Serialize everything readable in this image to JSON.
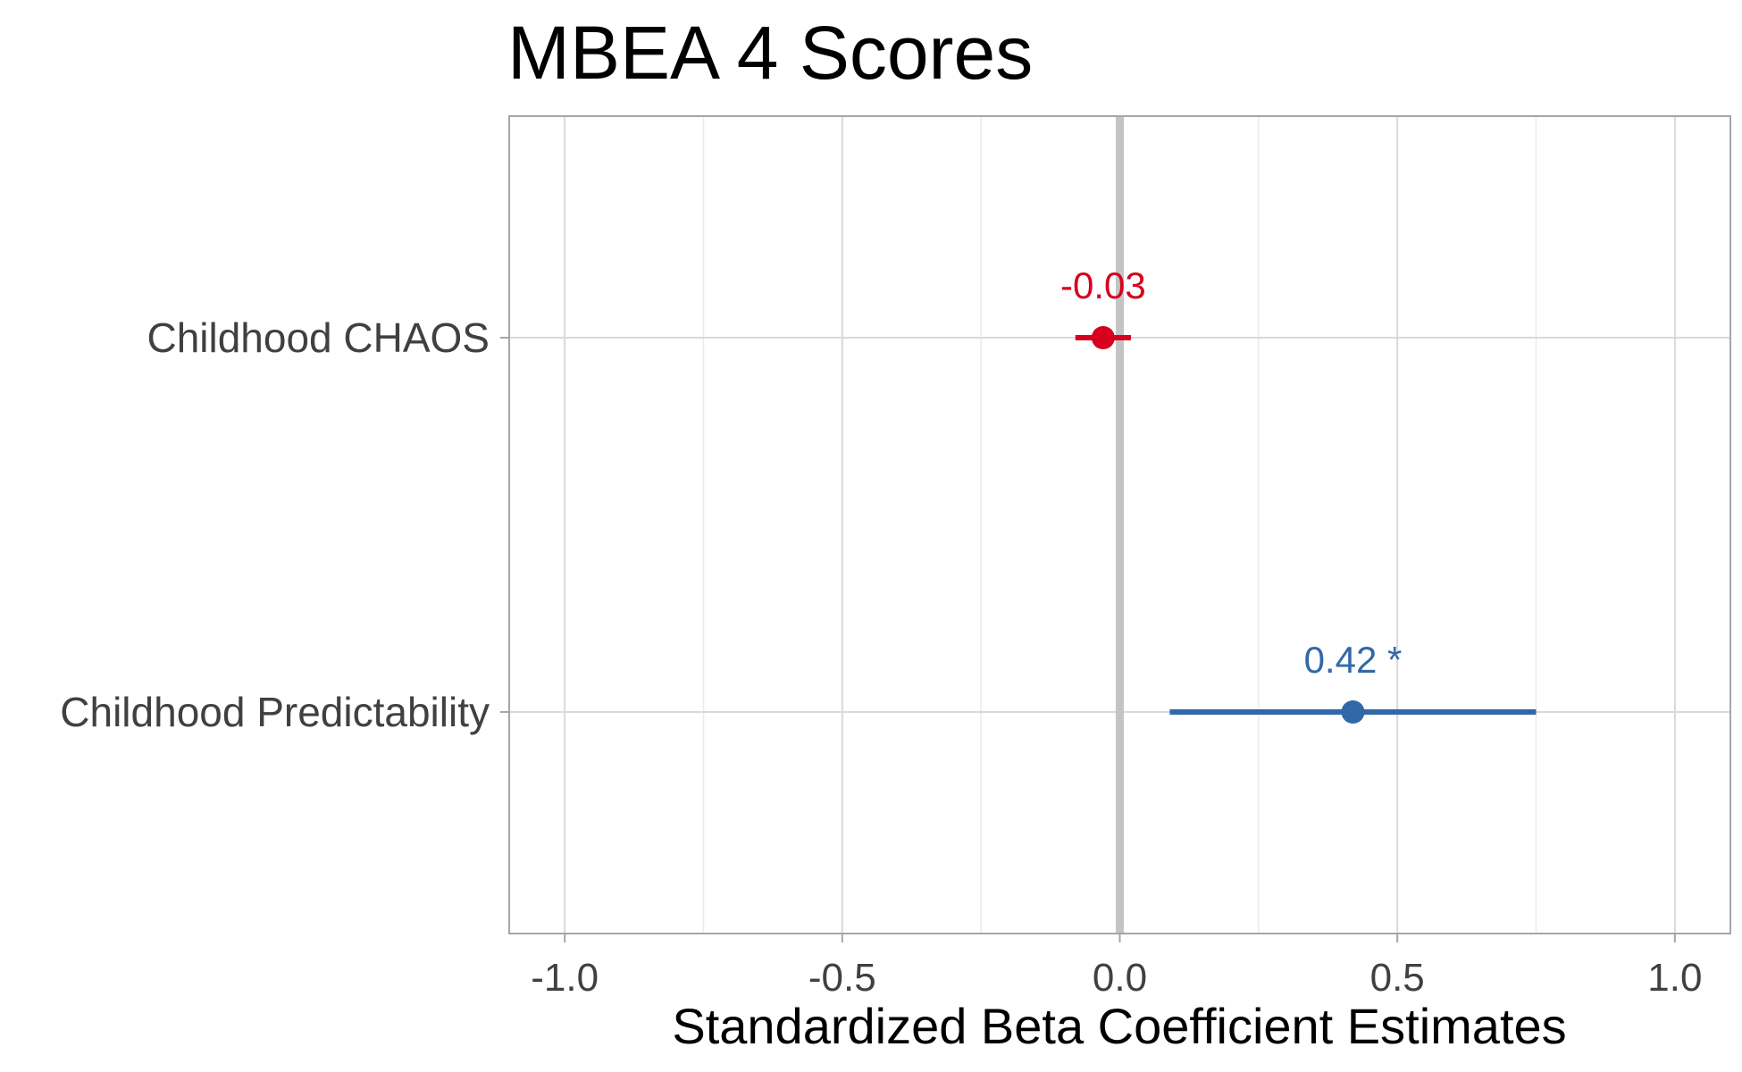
{
  "chart_data": {
    "type": "scatter",
    "title": "MBEA 4 Scores",
    "xlabel": "Standardized Beta Coefficient Estimates",
    "ylabel": "",
    "xlim": [
      -1.1,
      1.1
    ],
    "x_ticks": [
      -1.0,
      -0.5,
      0.0,
      0.5,
      1.0
    ],
    "x_tick_labels": [
      "-1.0",
      "-0.5",
      "0.0",
      "0.5",
      "1.0"
    ],
    "reference_line": 0.0,
    "grid": true,
    "legend": "none",
    "categories": [
      "Childhood CHAOS",
      "Childhood Predictability"
    ],
    "points": [
      {
        "category": "Childhood CHAOS",
        "estimate": -0.03,
        "ci_low": -0.08,
        "ci_high": 0.02,
        "label": "-0.03",
        "color": "#d7001e"
      },
      {
        "category": "Childhood Predictability",
        "estimate": 0.42,
        "ci_low": 0.09,
        "ci_high": 0.75,
        "label": "0.42 *",
        "color": "#3168a8"
      }
    ]
  }
}
